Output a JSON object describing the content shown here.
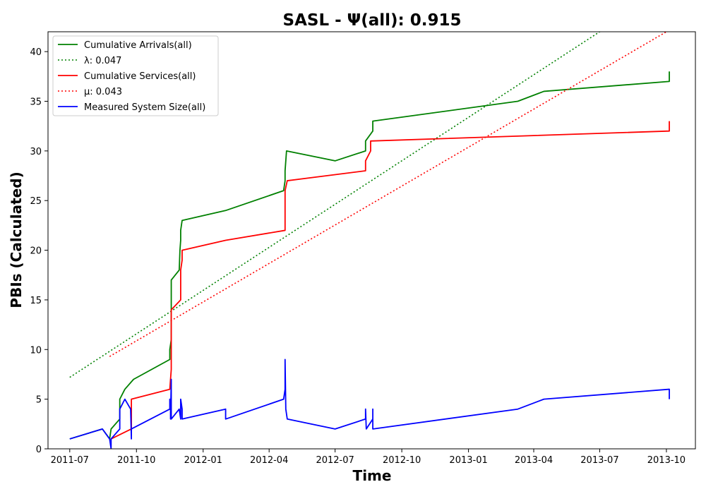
{
  "chart_data": {
    "type": "line",
    "title": "SASL -  Ψ(all): 0.915",
    "xlabel": "Time",
    "ylabel": "PBIs (Calculated)",
    "xlim": [
      "2011-06-01",
      "2013-11-10"
    ],
    "ylim": [
      0,
      42
    ],
    "x_ticks": [
      "2011-07",
      "2011-10",
      "2012-01",
      "2012-04",
      "2012-07",
      "2012-10",
      "2013-01",
      "2013-04",
      "2013-07",
      "2013-10"
    ],
    "y_ticks": [
      0,
      5,
      10,
      15,
      20,
      25,
      30,
      35,
      40
    ],
    "grid": false,
    "legend_position": "top-left",
    "series": [
      {
        "name": "Cumulative Arrivals(all)",
        "color": "#008000",
        "style": "solid",
        "points": [
          [
            "2011-07-01",
            1
          ],
          [
            "2011-08-15",
            2
          ],
          [
            "2011-08-25",
            1
          ],
          [
            "2011-08-27",
            2
          ],
          [
            "2011-09-08",
            3
          ],
          [
            "2011-09-08",
            5
          ],
          [
            "2011-09-15",
            6
          ],
          [
            "2011-09-27",
            7
          ],
          [
            "2011-11-16",
            9
          ],
          [
            "2011-11-16",
            10
          ],
          [
            "2011-11-18",
            11
          ],
          [
            "2011-11-18",
            17
          ],
          [
            "2011-11-29",
            18
          ],
          [
            "2011-11-30",
            20
          ],
          [
            "2011-12-01",
            21
          ],
          [
            "2011-12-01",
            22
          ],
          [
            "2011-12-03",
            23
          ],
          [
            "2012-02-01",
            24
          ],
          [
            "2012-04-21",
            26
          ],
          [
            "2012-04-23",
            27
          ],
          [
            "2012-04-23",
            28
          ],
          [
            "2012-04-25",
            30
          ],
          [
            "2012-07-01",
            29
          ],
          [
            "2012-08-12",
            30
          ],
          [
            "2012-08-12",
            31
          ],
          [
            "2012-08-22",
            32
          ],
          [
            "2012-08-22",
            33
          ],
          [
            "2013-03-10",
            35
          ],
          [
            "2013-04-15",
            36
          ],
          [
            "2013-10-05",
            37
          ],
          [
            "2013-10-05",
            38
          ]
        ]
      },
      {
        "name": "λ: 0.047",
        "color": "#008000",
        "style": "dotted",
        "points": [
          [
            "2011-07-01",
            7.2
          ],
          [
            "2013-07-01",
            42
          ]
        ]
      },
      {
        "name": "Cumulative Services(all)",
        "color": "#ff0000",
        "style": "solid",
        "points": [
          [
            "2011-08-27",
            1
          ],
          [
            "2011-09-24",
            2
          ],
          [
            "2011-09-24",
            5
          ],
          [
            "2011-11-16",
            6
          ],
          [
            "2011-11-17",
            7
          ],
          [
            "2011-11-18",
            8
          ],
          [
            "2011-11-18",
            14
          ],
          [
            "2011-12-01",
            15
          ],
          [
            "2011-12-01",
            18
          ],
          [
            "2011-12-03",
            19
          ],
          [
            "2011-12-03",
            20
          ],
          [
            "2012-02-01",
            21
          ],
          [
            "2012-04-23",
            22
          ],
          [
            "2012-04-23",
            26
          ],
          [
            "2012-04-26",
            27
          ],
          [
            "2012-08-12",
            28
          ],
          [
            "2012-08-12",
            29
          ],
          [
            "2012-08-19",
            30
          ],
          [
            "2012-08-19",
            31
          ],
          [
            "2013-10-05",
            32
          ],
          [
            "2013-10-05",
            33
          ]
        ]
      },
      {
        "name": "μ: 0.043",
        "color": "#ff0000",
        "style": "dotted",
        "points": [
          [
            "2011-08-25",
            9.3
          ],
          [
            "2013-10-01",
            42
          ]
        ]
      },
      {
        "name": "Measured System Size(all)",
        "color": "#0000ff",
        "style": "solid",
        "points": [
          [
            "2011-07-01",
            1
          ],
          [
            "2011-08-15",
            2
          ],
          [
            "2011-08-25",
            1
          ],
          [
            "2011-08-27",
            0
          ],
          [
            "2011-08-27",
            1
          ],
          [
            "2011-09-08",
            2
          ],
          [
            "2011-09-08",
            4
          ],
          [
            "2011-09-15",
            5
          ],
          [
            "2011-09-23",
            4
          ],
          [
            "2011-09-24",
            1
          ],
          [
            "2011-09-24",
            2
          ],
          [
            "2011-11-16",
            4
          ],
          [
            "2011-11-16",
            5
          ],
          [
            "2011-11-17",
            4
          ],
          [
            "2011-11-17",
            3
          ],
          [
            "2011-11-18",
            7
          ],
          [
            "2011-11-18",
            3
          ],
          [
            "2011-11-29",
            4
          ],
          [
            "2011-12-01",
            3
          ],
          [
            "2011-12-01",
            5
          ],
          [
            "2011-12-03",
            4
          ],
          [
            "2011-12-03",
            3
          ],
          [
            "2012-02-01",
            4
          ],
          [
            "2012-02-01",
            3
          ],
          [
            "2012-04-21",
            5
          ],
          [
            "2012-04-23",
            6
          ],
          [
            "2012-04-23",
            8
          ],
          [
            "2012-04-23",
            9
          ],
          [
            "2012-04-24",
            4
          ],
          [
            "2012-04-26",
            3
          ],
          [
            "2012-07-01",
            2
          ],
          [
            "2012-08-12",
            3
          ],
          [
            "2012-08-12",
            4
          ],
          [
            "2012-08-13",
            2
          ],
          [
            "2012-08-22",
            3
          ],
          [
            "2012-08-22",
            4
          ],
          [
            "2012-08-22",
            2
          ],
          [
            "2013-03-10",
            4
          ],
          [
            "2013-04-15",
            5
          ],
          [
            "2013-10-05",
            6
          ],
          [
            "2013-10-05",
            5
          ]
        ]
      }
    ]
  }
}
